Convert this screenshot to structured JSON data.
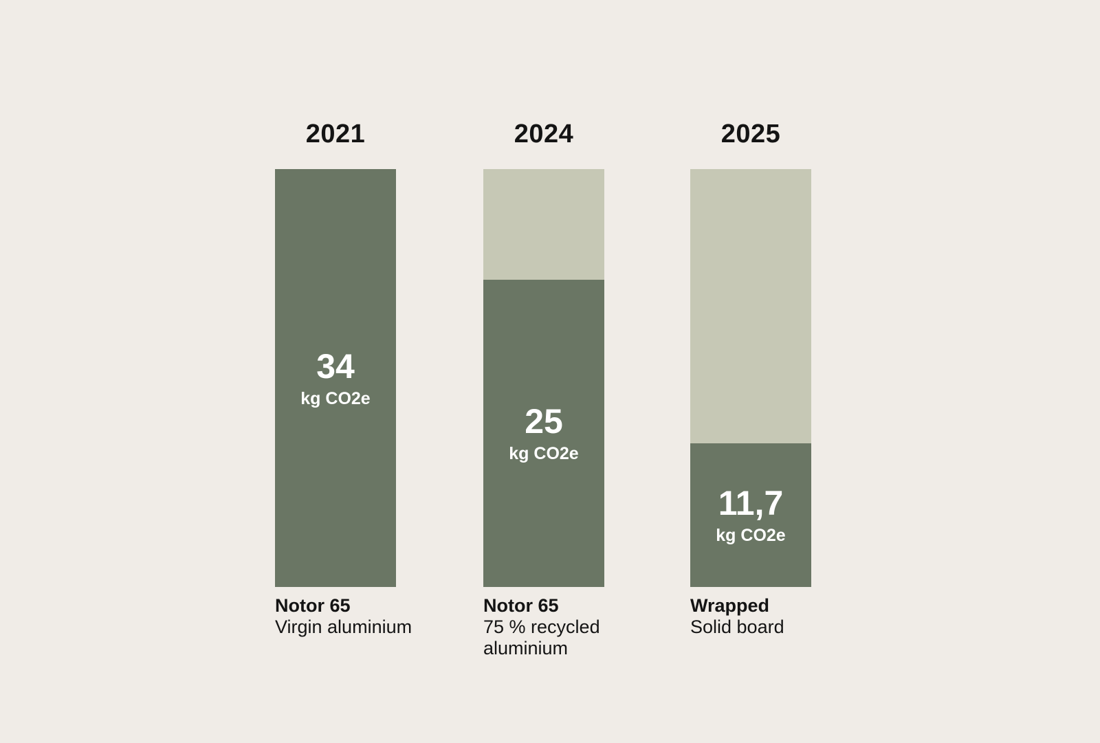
{
  "chart_data": {
    "type": "bar",
    "title": "",
    "unit_label": "kg CO2e",
    "value_axis_max": 34,
    "categories": [
      "2021",
      "2024",
      "2025"
    ],
    "values": [
      34,
      25,
      11.7
    ],
    "legend": "none",
    "grid": false,
    "columns": [
      {
        "year": "2021",
        "value": 34,
        "value_display": "34",
        "unit": "kg CO2e",
        "product": "Notor 65",
        "material": "Virgin aluminium"
      },
      {
        "year": "2024",
        "value": 25,
        "value_display": "25",
        "unit": "kg CO2e",
        "product": "Notor 65",
        "material": "75 % recycled aluminium"
      },
      {
        "year": "2025",
        "value": 11.7,
        "value_display": "11,7",
        "unit": "kg CO2e",
        "product": "Wrapped",
        "material": "Solid board"
      }
    ],
    "colors": {
      "background": "#f0ece7",
      "bar_fill": "#6a7664",
      "bar_remainder": "#c6c8b5",
      "label_text": "#141414",
      "value_text": "#ffffff"
    }
  }
}
